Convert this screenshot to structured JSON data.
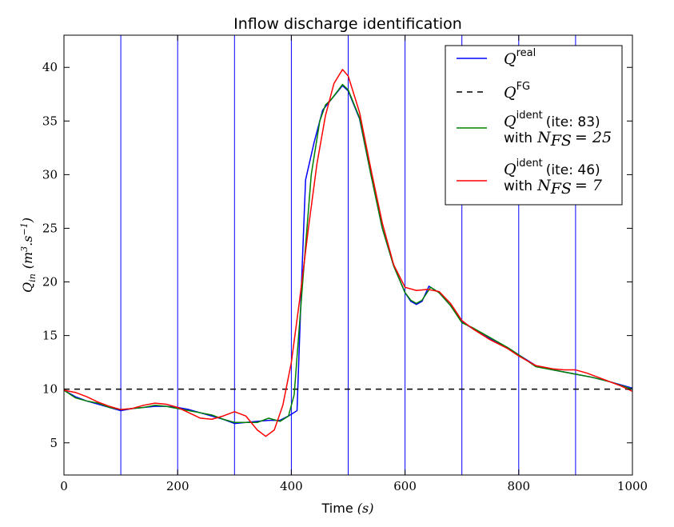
{
  "chart_data": {
    "type": "line",
    "title": "Inflow discharge identification",
    "xlabel": {
      "text": "Time",
      "unit": "(s)"
    },
    "ylabel": {
      "symbol": "Q",
      "sub": "in",
      "unit_open": "(m",
      "unit_sup1": "3",
      "unit_mid": ".s",
      "unit_sup2": "−1",
      "unit_close": ")"
    },
    "xlim": [
      0,
      1000
    ],
    "ylim": [
      2,
      43
    ],
    "xticks": [
      0,
      200,
      400,
      600,
      800,
      1000
    ],
    "yticks": [
      5,
      10,
      15,
      20,
      25,
      30,
      35,
      40
    ],
    "xtick_labels": [
      "0",
      "200",
      "400",
      "600",
      "800",
      "1000"
    ],
    "ytick_labels": [
      "5",
      "10",
      "15",
      "20",
      "25",
      "30",
      "35",
      "40"
    ],
    "vlines": {
      "color": "#0000ff",
      "x": [
        100,
        200,
        300,
        400,
        500,
        600,
        700,
        800,
        900
      ]
    },
    "grid": false,
    "legend_position": "top-right",
    "series": [
      {
        "color": "#0000ff",
        "style": "solid",
        "legend": {
          "math": "Q",
          "sup": "real",
          "paren": "",
          "line2_prefix": "",
          "line2_math": "",
          "line2_eq": ""
        },
        "points": [
          [
            0,
            9.9
          ],
          [
            20,
            9.3
          ],
          [
            40,
            8.9
          ],
          [
            60,
            8.6
          ],
          [
            80,
            8.3
          ],
          [
            100,
            8.0
          ],
          [
            120,
            8.2
          ],
          [
            140,
            8.3
          ],
          [
            160,
            8.4
          ],
          [
            180,
            8.4
          ],
          [
            200,
            8.3
          ],
          [
            220,
            8.1
          ],
          [
            240,
            7.8
          ],
          [
            260,
            7.5
          ],
          [
            280,
            7.2
          ],
          [
            300,
            6.8
          ],
          [
            320,
            6.9
          ],
          [
            340,
            7.0
          ],
          [
            360,
            7.1
          ],
          [
            380,
            7.1
          ],
          [
            395,
            7.5
          ],
          [
            410,
            8.0
          ],
          [
            418,
            20.0
          ],
          [
            425,
            29.5
          ],
          [
            440,
            33.0
          ],
          [
            455,
            36.0
          ],
          [
            470,
            37.0
          ],
          [
            490,
            38.3
          ],
          [
            500,
            37.8
          ],
          [
            520,
            35.2
          ],
          [
            540,
            30.0
          ],
          [
            560,
            25.0
          ],
          [
            580,
            21.5
          ],
          [
            600,
            19.0
          ],
          [
            610,
            18.2
          ],
          [
            620,
            17.9
          ],
          [
            630,
            18.2
          ],
          [
            642,
            19.6
          ],
          [
            660,
            19.0
          ],
          [
            680,
            17.8
          ],
          [
            700,
            16.3
          ],
          [
            720,
            15.6
          ],
          [
            750,
            14.7
          ],
          [
            780,
            13.9
          ],
          [
            800,
            13.2
          ],
          [
            830,
            12.2
          ],
          [
            860,
            11.8
          ],
          [
            900,
            11.4
          ],
          [
            930,
            11.1
          ],
          [
            960,
            10.7
          ],
          [
            1000,
            10.1
          ]
        ]
      },
      {
        "color": "#000000",
        "style": "dashed",
        "legend": {
          "math": "Q",
          "sup": "FG",
          "paren": "",
          "line2_prefix": "",
          "line2_math": "",
          "line2_eq": ""
        },
        "points": [
          [
            0,
            10.0
          ],
          [
            1000,
            10.0
          ]
        ]
      },
      {
        "color": "#008000",
        "style": "solid",
        "legend": {
          "math": "Q",
          "sup": "ident",
          "paren": "(ite: 83)",
          "line2_prefix": "with",
          "line2_math": "N",
          "line2_sub": "FS",
          "line2_eq": "= 25"
        },
        "points": [
          [
            0,
            9.9
          ],
          [
            20,
            9.2
          ],
          [
            40,
            8.9
          ],
          [
            60,
            8.7
          ],
          [
            80,
            8.3
          ],
          [
            100,
            8.1
          ],
          [
            120,
            8.2
          ],
          [
            140,
            8.3
          ],
          [
            160,
            8.5
          ],
          [
            180,
            8.4
          ],
          [
            200,
            8.2
          ],
          [
            220,
            8.0
          ],
          [
            240,
            7.8
          ],
          [
            260,
            7.6
          ],
          [
            280,
            7.2
          ],
          [
            300,
            6.9
          ],
          [
            320,
            6.9
          ],
          [
            340,
            6.9
          ],
          [
            360,
            7.3
          ],
          [
            380,
            7.0
          ],
          [
            395,
            7.5
          ],
          [
            405,
            9.5
          ],
          [
            420,
            20.0
          ],
          [
            435,
            30.0
          ],
          [
            450,
            35.0
          ],
          [
            460,
            36.5
          ],
          [
            470,
            37.0
          ],
          [
            490,
            38.4
          ],
          [
            500,
            37.9
          ],
          [
            520,
            35.3
          ],
          [
            540,
            30.0
          ],
          [
            560,
            25.0
          ],
          [
            580,
            21.5
          ],
          [
            600,
            19.0
          ],
          [
            610,
            18.3
          ],
          [
            620,
            18.0
          ],
          [
            630,
            18.3
          ],
          [
            645,
            19.5
          ],
          [
            660,
            19.0
          ],
          [
            680,
            17.8
          ],
          [
            700,
            16.2
          ],
          [
            720,
            15.7
          ],
          [
            750,
            14.8
          ],
          [
            780,
            13.9
          ],
          [
            800,
            13.2
          ],
          [
            830,
            12.1
          ],
          [
            860,
            11.8
          ],
          [
            900,
            11.4
          ],
          [
            930,
            11.1
          ],
          [
            960,
            10.7
          ],
          [
            1000,
            10.0
          ]
        ]
      },
      {
        "color": "#ff0000",
        "style": "solid",
        "legend": {
          "math": "Q",
          "sup": "ident",
          "paren": "(ite: 46)",
          "line2_prefix": "with",
          "line2_math": "N",
          "line2_sub": "FS",
          "line2_eq": "= 7"
        },
        "points": [
          [
            0,
            9.9
          ],
          [
            20,
            9.7
          ],
          [
            40,
            9.3
          ],
          [
            60,
            8.8
          ],
          [
            80,
            8.4
          ],
          [
            100,
            8.1
          ],
          [
            120,
            8.2
          ],
          [
            140,
            8.5
          ],
          [
            160,
            8.7
          ],
          [
            180,
            8.6
          ],
          [
            200,
            8.3
          ],
          [
            220,
            7.8
          ],
          [
            240,
            7.3
          ],
          [
            260,
            7.2
          ],
          [
            280,
            7.5
          ],
          [
            300,
            7.9
          ],
          [
            320,
            7.5
          ],
          [
            340,
            6.2
          ],
          [
            355,
            5.6
          ],
          [
            370,
            6.2
          ],
          [
            385,
            8.5
          ],
          [
            400,
            12.5
          ],
          [
            415,
            18.5
          ],
          [
            430,
            25.0
          ],
          [
            445,
            31.0
          ],
          [
            460,
            35.5
          ],
          [
            475,
            38.5
          ],
          [
            490,
            39.8
          ],
          [
            500,
            39.2
          ],
          [
            520,
            35.8
          ],
          [
            540,
            30.5
          ],
          [
            560,
            25.5
          ],
          [
            580,
            21.6
          ],
          [
            600,
            19.5
          ],
          [
            620,
            19.2
          ],
          [
            640,
            19.3
          ],
          [
            660,
            19.1
          ],
          [
            680,
            18.0
          ],
          [
            700,
            16.4
          ],
          [
            720,
            15.6
          ],
          [
            750,
            14.6
          ],
          [
            780,
            13.8
          ],
          [
            800,
            13.1
          ],
          [
            830,
            12.2
          ],
          [
            860,
            11.9
          ],
          [
            880,
            11.8
          ],
          [
            900,
            11.8
          ],
          [
            920,
            11.5
          ],
          [
            950,
            10.9
          ],
          [
            980,
            10.3
          ],
          [
            1000,
            9.8
          ]
        ]
      }
    ]
  }
}
